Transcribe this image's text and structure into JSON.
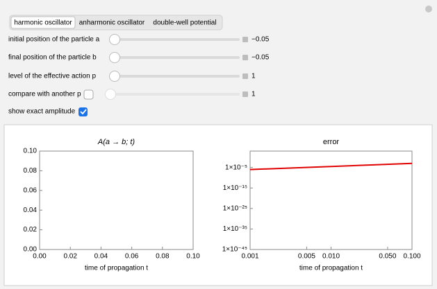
{
  "tabs": [
    "harmonic oscillator",
    "anharmonic oscillator",
    "double-well potential"
  ],
  "controls": [
    {
      "label": "initial position of the particle a",
      "value": "−0.05",
      "color": "#000000"
    },
    {
      "label": "final position of the particle b",
      "value": "−0.05",
      "color": "#000000"
    },
    {
      "label": "level of the effective action p",
      "value": "1",
      "color": "#e00000"
    },
    {
      "label": "compare with another p",
      "value": "1",
      "color": "#0000d0"
    }
  ],
  "checkbox_label": "show exact amplitude",
  "chart_data": [
    {
      "type": "line",
      "title": "A(a → b; t)",
      "xlabel": "time of propagation t",
      "xlim": [
        0,
        0.1
      ],
      "ylim": [
        0,
        0.1
      ],
      "xticks": [
        {
          "value": 0,
          "label": "0.00"
        },
        {
          "value": 0.02,
          "label": "0.02"
        },
        {
          "value": 0.04,
          "label": "0.04"
        },
        {
          "value": 0.06,
          "label": "0.06"
        },
        {
          "value": 0.08,
          "label": "0.08"
        },
        {
          "value": 0.1,
          "label": "0.10"
        }
      ],
      "yticks": [
        {
          "value": 0,
          "label": "0.00"
        },
        {
          "value": 0.02,
          "label": "0.02"
        },
        {
          "value": 0.04,
          "label": "0.04"
        },
        {
          "value": 0.06,
          "label": "0.06"
        },
        {
          "value": 0.08,
          "label": "0.08"
        },
        {
          "value": 0.1,
          "label": "0.10"
        }
      ]
    },
    {
      "type": "line",
      "title": "error",
      "xlabel": "time of propagation t",
      "xlog": true,
      "ylog": true,
      "xlim": [
        0.001,
        0.1
      ],
      "ylim": [
        1e-45,
        1000.0
      ],
      "xticks": [
        0.001,
        0.005,
        {
          "value": 0.01,
          "label": "0.010"
        },
        {
          "value": 0.05,
          "label": "0.050"
        },
        {
          "value": 0.1,
          "label": "0.100"
        }
      ],
      "yticks": [
        {
          "value": 1e-05,
          "label": "1×10⁻⁵"
        },
        {
          "value": 1e-15,
          "label": "1×10⁻¹⁵"
        },
        {
          "value": 1e-25,
          "label": "1×10⁻²⁵"
        },
        {
          "value": 1e-35,
          "label": "1×10⁻³⁵"
        },
        {
          "value": 1e-45,
          "label": "1×10⁻⁴⁵"
        }
      ],
      "x": [
        0.001,
        0.1
      ],
      "series": [
        {
          "color": "#e00000",
          "values": [
            1e-06,
            0.001
          ]
        }
      ]
    }
  ]
}
